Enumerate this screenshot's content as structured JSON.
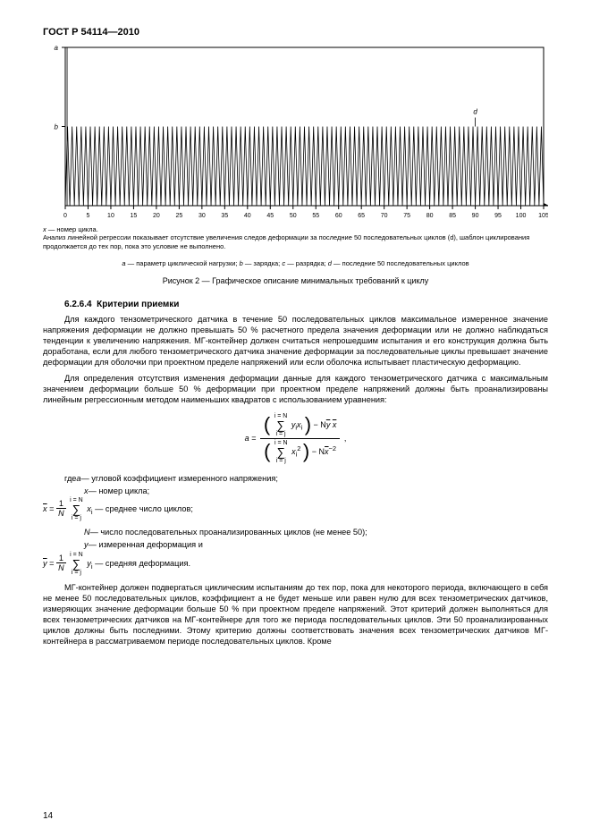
{
  "header": "ГОСТ Р 54114—2010",
  "chart": {
    "type": "oscillation",
    "xlim": [
      0,
      105
    ],
    "ylim": [
      0,
      1.0
    ],
    "xticks": [
      0,
      5,
      10,
      15,
      20,
      25,
      30,
      35,
      40,
      45,
      50,
      55,
      60,
      65,
      70,
      75,
      80,
      85,
      90,
      95,
      100,
      105
    ],
    "oscillation_amplitude_low": 0.0,
    "oscillation_amplitude_high": 0.5,
    "initial_spike_x": 0,
    "initial_spike_height": 1.0,
    "spike_x": 55,
    "spike_height": 1.0,
    "marker_d_x": 90,
    "marker_d_label": "d",
    "yaxis_a_label": "a",
    "yaxis_b_label": "b",
    "axis_color": "#000000",
    "line_color": "#000000",
    "grid_color": "#000000",
    "tick_fontsize": 7,
    "label_fontsize": 8,
    "background": "#ffffff"
  },
  "footnote_line1_var": "x",
  "footnote_line1_rest": " — номер цикла.",
  "footnote_line2": "Анализ линейной регрессии показывает отсутствие увеличения следов деформации за последние 50 последовательных циклов (d), шаблон циклирования продолжается до тех пор, пока это условие не выполнено.",
  "legend": {
    "a_var": "a",
    "a_txt": " — параметр циклической нагрузки; ",
    "b_var": "b",
    "b_txt": " — зарядка; ",
    "c_var": "c",
    "c_txt": " — разрядка; ",
    "d_var": "d",
    "d_txt": " — последние 50 последовательных циклов"
  },
  "fig_caption": "Рисунок  2  —  Графическое описание минимальных требований к циклу",
  "section_num": "6.2.6.4",
  "section_title": "Критерии приемки",
  "para1": "Для каждого тензометрического датчика в течение 50 последовательных циклов максимальное измеренное значение напряжения деформации не должно превышать 50 % расчетного предела значения деформации или не должно наблюдаться тенденции к увеличению напряжения. МГ-контейнер должен считаться непрошедшим испытания и его конструкция должна быть доработана, если для любого тензометрического датчика значение деформации за последовательные циклы превышает значение деформации для оболочки при проектном пределе напряжений или если оболочка испытывает пластическую деформацию.",
  "para2": "Для определения отсутствия изменения деформации данные для каждого тензометрического датчика с максимальным значением деформации больше 50 % деформации при проектном пределе напряжений должны быть проанализированы линейным регрессионным методом наименьших квадратов с использованием уравнения:",
  "formula_main": {
    "lhs": "a = ",
    "num_sum_top": "i = N",
    "num_sum_bot": "i = j",
    "num_inner": "y",
    "num_sub_i": "i",
    "num_x": "x",
    "num_sub_i2": "i",
    "num_tail": " − N",
    "num_ybar": "y",
    "num_xbar": "x",
    "den_sum_top": "i = N",
    "den_sum_bot": "i = j",
    "den_x": "x",
    "den_sub": "i",
    "den_sup": "2",
    "den_tail": " − N",
    "den_xbar": "x",
    "den_pow": "−2",
    "comma": ","
  },
  "where_label": "где  ",
  "where_a_var": "a",
  "where_a_txt": " — угловой коэффициент измеренного напряжения;",
  "where_x_var": "x",
  "where_x_txt": " — номер цикла;",
  "where_xbar_lhs_x": "x",
  "where_xbar_sum_top": "i = N",
  "where_xbar_sum_bot": "i = j",
  "where_xbar_xi_x": "x",
  "where_xbar_xi_i": "i",
  "where_xbar_txt": " — среднее число циклов;",
  "where_N_var": "N",
  "where_N_txt": " — число последовательных проанализированных циклов (не менее 50);",
  "where_y_var": "y",
  "where_y_txt": " — измеренная деформация и",
  "where_ybar_lhs_y": "y",
  "where_ybar_sum_top": "i = N",
  "where_ybar_sum_bot": "i = j",
  "where_ybar_yi_y": "y",
  "where_ybar_yi_i": "i",
  "where_ybar_txt": " — средняя деформация.",
  "one": "1",
  "N_sym": "N",
  "eq_sym": " = ",
  "para3": "МГ-контейнер должен подвергаться циклическим испытаниям до тех пор, пока для некоторого периода, включающего в себя не менее 50 последовательных циклов, коэффициент a не будет меньше или равен нулю для всех тензометрических датчиков, измеряющих значение деформации больше 50 % при проектном пределе напряжений. Этот критерий должен выполняться для всех тензометрических датчиков на МГ-контейнере для того же периода последовательных циклов. Эти 50 проанализированных циклов должны быть последними. Этому критерию должны соответствовать значения всех тензометрических датчиков МГ-контейнера в рассматриваемом периоде последовательных циклов. Кроме",
  "page_number": "14"
}
